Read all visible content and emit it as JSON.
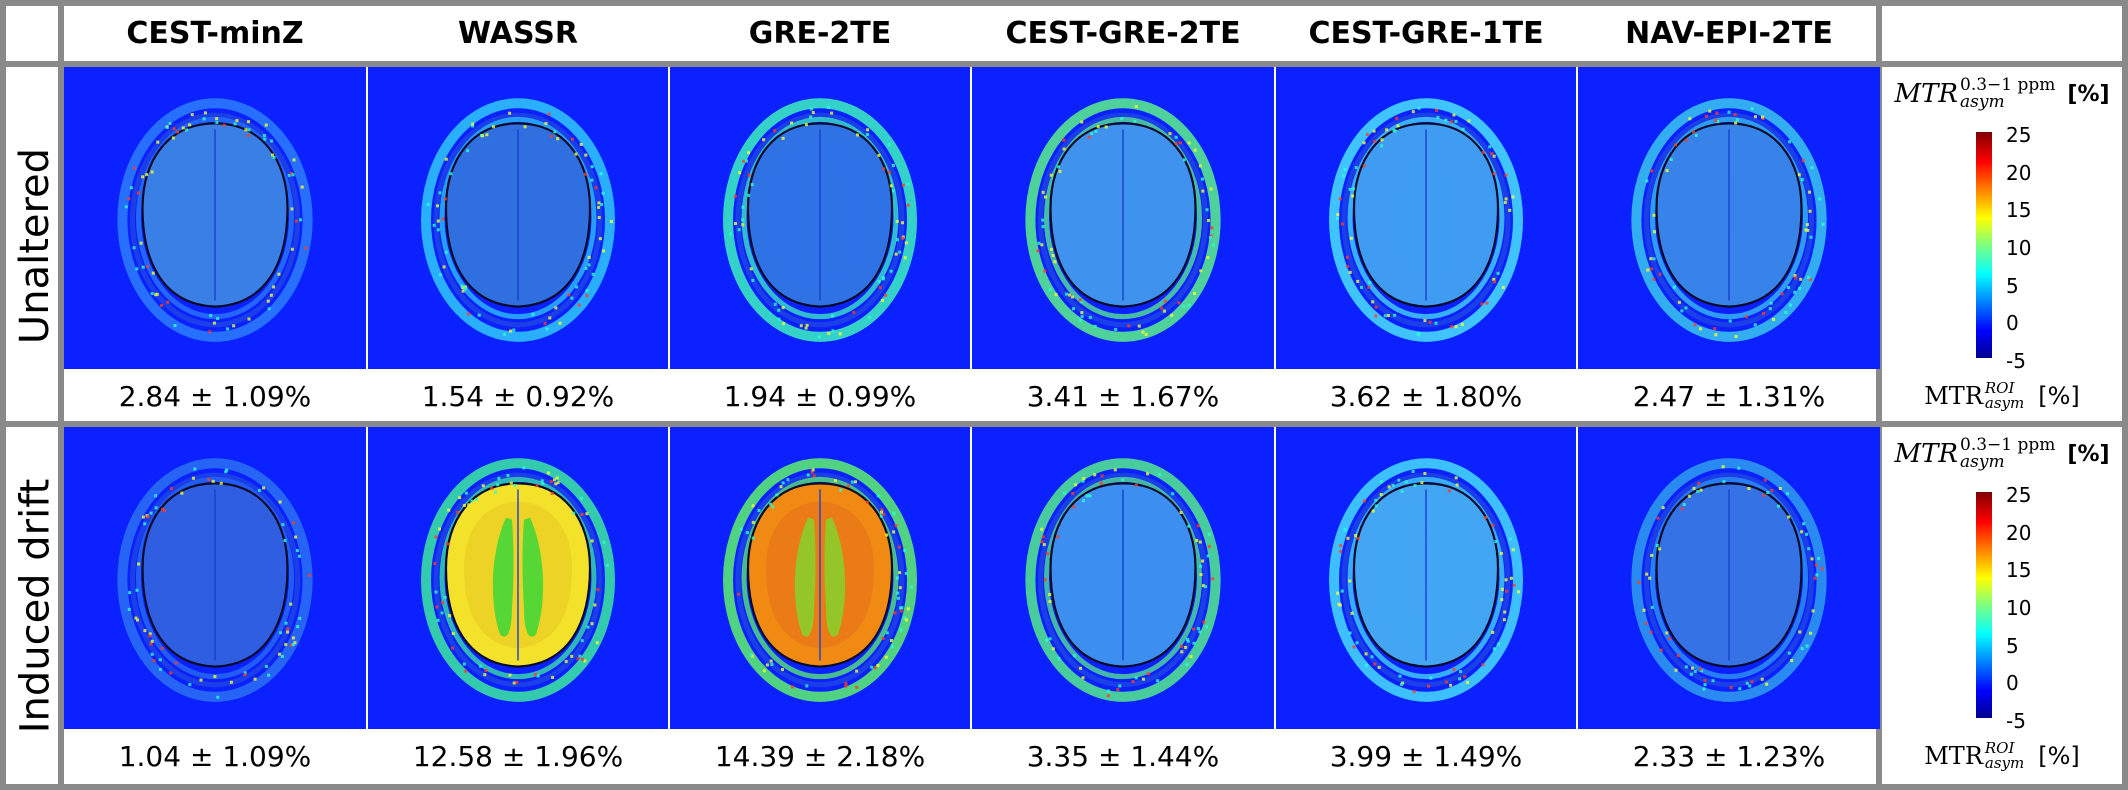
{
  "columns": [
    "CEST-minZ",
    "WASSR",
    "GRE-2TE",
    "CEST-GRE-2TE",
    "CEST-GRE-1TE",
    "NAV-EPI-2TE"
  ],
  "rows": [
    {
      "label": "Unaltered",
      "stats": [
        "2.84 ± 1.09%",
        "1.54 ± 0.92%",
        "1.94 ± 0.99%",
        "3.41 ± 1.67%",
        "3.62 ± 1.80%",
        "2.47 ± 1.31%"
      ],
      "panels": [
        {
          "ring": "#2c7cff",
          "core": "#3a7fe6",
          "gm": "#3a7fe6",
          "wm": "#3a7fe6"
        },
        {
          "ring": "#30c8ff",
          "core": "#2f6fe0",
          "gm": "#2f6fe0",
          "wm": "#2f6fe0"
        },
        {
          "ring": "#3cf0c0",
          "core": "#2e72e6",
          "gm": "#2e72e6",
          "wm": "#2e72e6"
        },
        {
          "ring": "#5af08a",
          "core": "#3f93ee",
          "gm": "#3f93ee",
          "wm": "#3f93ee"
        },
        {
          "ring": "#4ae0ff",
          "core": "#3f9cf2",
          "gm": "#3f9cf2",
          "wm": "#3f9cf2"
        },
        {
          "ring": "#39c6f0",
          "core": "#3783ea",
          "gm": "#3783ea",
          "wm": "#3783ea"
        }
      ]
    },
    {
      "label": "Induced drift",
      "stats": [
        "1.04 ± 1.09%",
        "12.58 ± 1.96%",
        "14.39 ± 2.18%",
        "3.35 ± 1.44%",
        "3.99 ± 1.49%",
        "2.33 ± 1.23%"
      ],
      "panels": [
        {
          "ring": "#2a70f2",
          "core": "#2f5fe0",
          "gm": "#2f5fe0",
          "wm": "#2f5fe0"
        },
        {
          "ring": "#3ce8a0",
          "core": "#f4e12a",
          "gm": "#e8c820",
          "wm": "#30d83a"
        },
        {
          "ring": "#5ef06c",
          "core": "#f08a12",
          "gm": "#e8701a",
          "wm": "#7ed92c"
        },
        {
          "ring": "#55ea8c",
          "core": "#3c8ff0",
          "gm": "#3c8ff0",
          "wm": "#3c8ff0"
        },
        {
          "ring": "#46dcff",
          "core": "#42a6f4",
          "gm": "#42a6f4",
          "wm": "#42a6f4"
        },
        {
          "ring": "#2f9ef0",
          "core": "#3572e6",
          "gm": "#3572e6",
          "wm": "#3572e6"
        }
      ]
    }
  ],
  "colorbar": {
    "title_base": "MTR",
    "title_sup": "0.3−1 ppm",
    "title_sub": "asym",
    "title_unit": "[%]",
    "ticks": [
      "25",
      "20",
      "15",
      "10",
      "5",
      "0",
      "-5"
    ],
    "footer_base": "MTR",
    "footer_sup": "ROI",
    "footer_sub": "asym",
    "footer_unit": "[%]",
    "colormap": "jet"
  }
}
